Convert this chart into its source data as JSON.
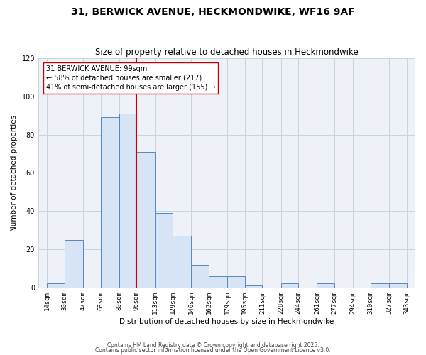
{
  "title": "31, BERWICK AVENUE, HECKMONDWIKE, WF16 9AF",
  "subtitle": "Size of property relative to detached houses in Heckmondwike",
  "xlabel": "Distribution of detached houses by size in Heckmondwike",
  "ylabel": "Number of detached properties",
  "bar_color": "#d6e4f5",
  "bar_edgecolor": "#5588bb",
  "bins": [
    14,
    30,
    47,
    63,
    80,
    96,
    113,
    129,
    146,
    162,
    179,
    195,
    211,
    228,
    244,
    261,
    277,
    294,
    310,
    327,
    343
  ],
  "counts": [
    2,
    25,
    0,
    89,
    91,
    71,
    39,
    27,
    12,
    6,
    6,
    1,
    0,
    2,
    0,
    2,
    0,
    0,
    2,
    2
  ],
  "vline_x": 96,
  "vline_color": "#cc0000",
  "ylim": [
    0,
    120
  ],
  "yticks": [
    0,
    20,
    40,
    60,
    80,
    100,
    120
  ],
  "annotation_line1": "31 BERWICK AVENUE: 99sqm",
  "annotation_line2": "← 58% of detached houses are smaller (217)",
  "annotation_line3": "41% of semi-detached houses are larger (155) →",
  "footnote1": "Contains HM Land Registry data © Crown copyright and database right 2025.",
  "footnote2": "Contains public sector information licensed under the Open Government Licence v3.0.",
  "tick_labels": [
    "14sqm",
    "30sqm",
    "47sqm",
    "63sqm",
    "80sqm",
    "96sqm",
    "113sqm",
    "129sqm",
    "146sqm",
    "162sqm",
    "179sqm",
    "195sqm",
    "211sqm",
    "228sqm",
    "244sqm",
    "261sqm",
    "277sqm",
    "294sqm",
    "310sqm",
    "327sqm",
    "343sqm"
  ],
  "bg_color": "#eef2f8",
  "grid_color": "#c8d4e0",
  "title_fontsize": 10,
  "subtitle_fontsize": 8.5,
  "axis_label_fontsize": 7.5,
  "tick_fontsize": 6.5,
  "annotation_fontsize": 7,
  "footnote_fontsize": 5.5
}
